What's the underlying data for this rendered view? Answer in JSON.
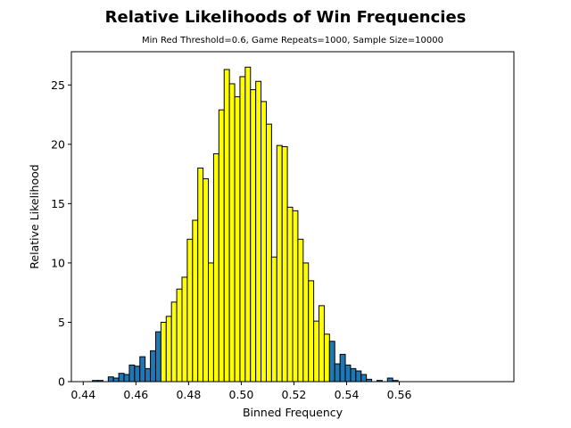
{
  "colors": {
    "center": "#ffff00",
    "tail": "#1f77b4",
    "edge": "#000000"
  },
  "chart_data": {
    "type": "bar",
    "title": "Relative Likelihoods of Win Frequencies",
    "subtitle": "Min Red Threshold=0.6, Game Repeats=1000, Sample Size=10000",
    "xlabel": "Binned Frequency",
    "ylabel": "Relative Likelihood",
    "xlim": [
      0.4355,
      0.6035
    ],
    "ylim": [
      0,
      27.8
    ],
    "xticks": [
      0.44,
      0.46,
      0.48,
      0.5,
      0.52,
      0.54,
      0.56
    ],
    "xtick_labels": [
      "0.44",
      "0.46",
      "0.48",
      "0.50",
      "0.52",
      "0.54",
      "0.56"
    ],
    "yticks": [
      0,
      5,
      10,
      15,
      20,
      25
    ],
    "ytick_labels": [
      "0",
      "5",
      "10",
      "15",
      "20",
      "25"
    ],
    "grid": false,
    "legend": false,
    "bin_width": 0.002,
    "series": [
      {
        "x": [
          0.4445,
          0.4465,
          0.4505,
          0.4525,
          0.4545,
          0.4565,
          0.4585,
          0.4605,
          0.4625,
          0.4645,
          0.4665,
          0.4685
        ],
        "values": [
          0.1,
          0.1,
          0.4,
          0.3,
          0.7,
          0.6,
          1.4,
          1.3,
          2.1,
          1.1,
          2.6,
          4.2
        ],
        "color": "#1f77b4"
      },
      {
        "x": [
          0.4705,
          0.4725,
          0.4745,
          0.4765,
          0.4785,
          0.4805,
          0.4825,
          0.4845,
          0.4865,
          0.4885,
          0.4905,
          0.4925,
          0.4945,
          0.4965,
          0.4985,
          0.5005,
          0.5025,
          0.5045,
          0.5065,
          0.5085,
          0.5105,
          0.5125,
          0.5145,
          0.5165,
          0.5185,
          0.5205,
          0.5225,
          0.5245,
          0.5265,
          0.5285,
          0.5305,
          0.5325
        ],
        "values": [
          5.0,
          5.5,
          6.7,
          7.8,
          8.8,
          12.0,
          13.6,
          18.0,
          17.1,
          10.0,
          19.2,
          22.9,
          26.3,
          25.1,
          24.0,
          25.7,
          26.5,
          24.6,
          25.3,
          23.6,
          21.7,
          10.5,
          19.9,
          19.8,
          14.7,
          14.4,
          12.0,
          10.0,
          8.5,
          5.1,
          6.4,
          4.0
        ],
        "color": "#ffff00"
      },
      {
        "x": [
          0.5345,
          0.5365,
          0.5385,
          0.5405,
          0.5425,
          0.5445,
          0.5465,
          0.5485,
          0.5525,
          0.5565,
          0.5585
        ],
        "values": [
          3.4,
          1.5,
          2.3,
          1.4,
          1.1,
          0.9,
          0.6,
          0.2,
          0.1,
          0.3,
          0.1
        ],
        "color": "#1f77b4"
      }
    ]
  }
}
